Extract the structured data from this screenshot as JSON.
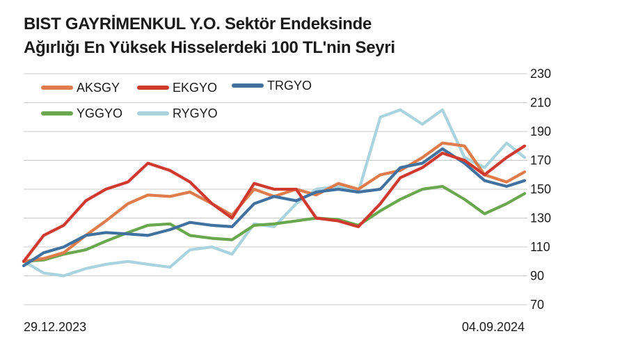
{
  "chart_data": {
    "type": "line",
    "title_lines": [
      "BIST GAYRİMENKUL Y.O. Sektör Endeksinde",
      "Ağırlığı En Yüksek Hisselerdeki 100 TL'nin Seyri"
    ],
    "xlabel": "",
    "ylabel": "",
    "x_start_label": "29.12.2023",
    "x_end_label": "04.09.2024",
    "x_range": [
      "29.12.2023",
      "04.09.2024"
    ],
    "y_ticks": [
      230,
      210,
      190,
      170,
      150,
      130,
      110,
      90,
      70
    ],
    "ylim": [
      70,
      230
    ],
    "grid": true,
    "grid_axis": "y",
    "legend_placement": "top-left",
    "x": [
      "2023-12-29",
      "2024-01-08",
      "2024-01-18",
      "2024-01-29",
      "2024-02-08",
      "2024-02-19",
      "2024-02-29",
      "2024-03-11",
      "2024-03-21",
      "2024-04-01",
      "2024-04-11",
      "2024-04-22",
      "2024-05-02",
      "2024-05-13",
      "2024-05-23",
      "2024-06-03",
      "2024-06-13",
      "2024-06-24",
      "2024-07-04",
      "2024-07-15",
      "2024-07-25",
      "2024-08-05",
      "2024-08-15",
      "2024-08-26",
      "2024-09-04"
    ],
    "series": [
      {
        "name": "AKSGY",
        "color": "#e07b4c",
        "values": [
          100,
          102,
          106,
          118,
          128,
          140,
          146,
          145,
          148,
          140,
          132,
          150,
          145,
          150,
          146,
          154,
          150,
          160,
          163,
          172,
          182,
          180,
          160,
          155,
          162
        ]
      },
      {
        "name": "EKGYO",
        "color": "#d03a2e",
        "values": [
          100,
          118,
          125,
          142,
          150,
          155,
          168,
          163,
          155,
          140,
          130,
          154,
          150,
          150,
          130,
          128,
          124,
          140,
          158,
          165,
          175,
          170,
          160,
          172,
          180
        ]
      },
      {
        "name": "TRGYO",
        "color": "#41729f",
        "values": [
          97,
          106,
          110,
          118,
          120,
          119,
          118,
          122,
          127,
          125,
          124,
          140,
          145,
          142,
          148,
          150,
          148,
          150,
          165,
          168,
          178,
          168,
          156,
          152,
          156
        ]
      },
      {
        "name": "YGGYO",
        "color": "#6aa84f",
        "values": [
          100,
          101,
          105,
          108,
          114,
          120,
          125,
          126,
          118,
          116,
          115,
          125,
          126,
          128,
          130,
          129,
          125,
          135,
          143,
          150,
          152,
          143,
          133,
          140,
          147
        ]
      },
      {
        "name": "RYGYO",
        "color": "#a9d3de",
        "values": [
          100,
          92,
          90,
          95,
          98,
          100,
          98,
          96,
          108,
          110,
          105,
          126,
          124,
          140,
          150,
          152,
          148,
          200,
          205,
          195,
          205,
          172,
          165,
          182,
          172
        ]
      }
    ]
  }
}
